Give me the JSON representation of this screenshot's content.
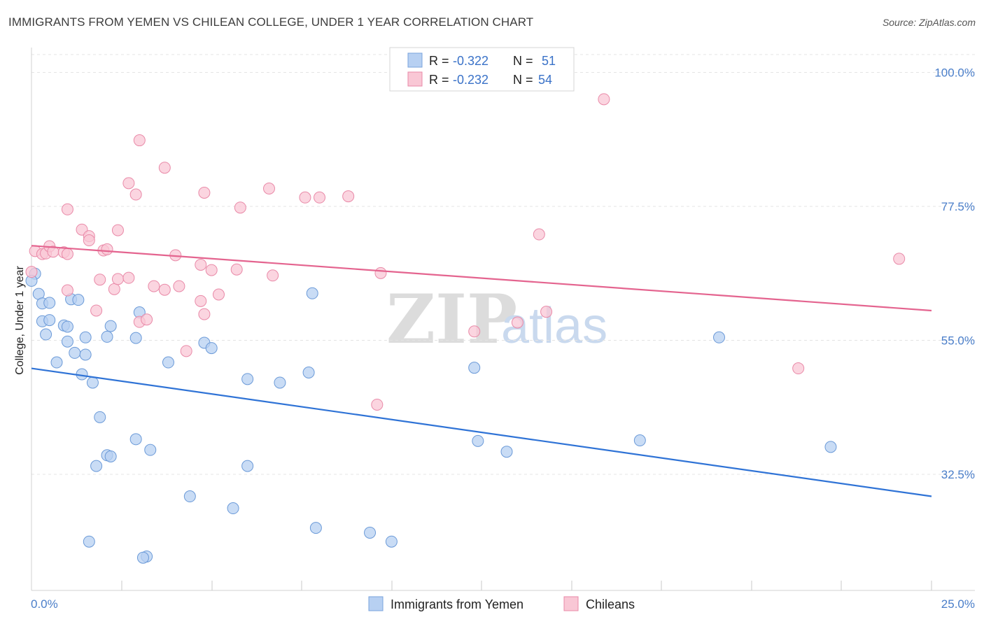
{
  "title": "IMMIGRANTS FROM YEMEN VS CHILEAN COLLEGE, UNDER 1 YEAR CORRELATION CHART",
  "source": "Source: ZipAtlas.com",
  "watermark": {
    "zip": "ZIP",
    "atlas": "atlas"
  },
  "legend": {
    "rows": [
      {
        "r_label": "R = ",
        "r_value": "-0.322",
        "n_label": "N = ",
        "n_value": "51",
        "color": "#a8c8f0"
      },
      {
        "r_label": "R = ",
        "r_value": "-0.232",
        "n_label": "N = ",
        "n_value": "54",
        "color": "#f7b8cb"
      }
    ]
  },
  "colors": {
    "blue_fill": "#b7d0f2",
    "blue_stroke": "#6b9ad8",
    "blue_line": "#2f73d6",
    "pink_fill": "#f9c7d5",
    "pink_stroke": "#e98aa8",
    "pink_line": "#e4648f",
    "axis_text": "#4a7ec9"
  },
  "chart_data": {
    "type": "scatter",
    "xlabel": "",
    "ylabel": "College, Under 1 year",
    "xlim": [
      0,
      25
    ],
    "ylim": [
      13,
      103
    ],
    "x_tick_labels": [
      "0.0%",
      "25.0%"
    ],
    "y_ticks": [
      {
        "value": 100,
        "label": "100.0%"
      },
      {
        "value": 77.5,
        "label": "77.5%"
      },
      {
        "value": 55,
        "label": "55.0%"
      },
      {
        "value": 32.5,
        "label": "32.5%"
      }
    ],
    "series": [
      {
        "name": "Immigrants from Yemen",
        "trend": {
          "x0": 0,
          "y0": 50.3,
          "x1": 25,
          "y1": 28.8
        },
        "points": [
          [
            0.1,
            66.2
          ],
          [
            0.2,
            62.8
          ],
          [
            0.3,
            61.2
          ],
          [
            0.3,
            58.2
          ],
          [
            0.4,
            56.0
          ],
          [
            0.5,
            61.3
          ],
          [
            0.5,
            58.4
          ],
          [
            0.7,
            51.3
          ],
          [
            0.9,
            57.5
          ],
          [
            1.0,
            57.3
          ],
          [
            1.0,
            54.8
          ],
          [
            1.1,
            61.9
          ],
          [
            1.2,
            52.9
          ],
          [
            1.3,
            61.8
          ],
          [
            1.4,
            49.3
          ],
          [
            1.5,
            55.5
          ],
          [
            1.5,
            52.6
          ],
          [
            1.7,
            47.9
          ],
          [
            1.9,
            42.1
          ],
          [
            2.1,
            35.7
          ],
          [
            2.2,
            35.5
          ],
          [
            1.8,
            33.9
          ],
          [
            2.1,
            55.6
          ],
          [
            2.2,
            57.4
          ],
          [
            2.9,
            55.4
          ],
          [
            2.9,
            38.4
          ],
          [
            3.0,
            59.7
          ],
          [
            3.3,
            36.6
          ],
          [
            3.8,
            51.3
          ],
          [
            4.4,
            28.8
          ],
          [
            4.8,
            54.6
          ],
          [
            5.0,
            53.7
          ],
          [
            5.6,
            26.8
          ],
          [
            6.0,
            48.5
          ],
          [
            6.0,
            33.9
          ],
          [
            6.9,
            47.9
          ],
          [
            7.7,
            49.6
          ],
          [
            7.8,
            62.9
          ],
          [
            7.9,
            23.5
          ],
          [
            9.4,
            22.7
          ],
          [
            10.0,
            21.2
          ],
          [
            12.3,
            50.4
          ],
          [
            12.4,
            38.1
          ],
          [
            13.2,
            36.3
          ],
          [
            16.9,
            38.2
          ],
          [
            19.1,
            55.5
          ],
          [
            22.2,
            37.1
          ],
          [
            1.6,
            21.2
          ],
          [
            3.2,
            18.7
          ],
          [
            3.1,
            18.5
          ],
          [
            0.0,
            65.0
          ]
        ]
      },
      {
        "name": "Chileans",
        "trend": {
          "x0": 0,
          "y0": 70.9,
          "x1": 25,
          "y1": 60.0
        },
        "points": [
          [
            0.1,
            70.0
          ],
          [
            0.3,
            69.5
          ],
          [
            0.4,
            69.6
          ],
          [
            0.5,
            70.8
          ],
          [
            0.6,
            69.9
          ],
          [
            0.9,
            69.8
          ],
          [
            1.0,
            69.5
          ],
          [
            1.0,
            63.4
          ],
          [
            1.0,
            77.0
          ],
          [
            1.4,
            73.6
          ],
          [
            1.6,
            72.5
          ],
          [
            1.6,
            71.8
          ],
          [
            1.8,
            60.0
          ],
          [
            1.9,
            65.2
          ],
          [
            2.0,
            70.1
          ],
          [
            2.1,
            70.3
          ],
          [
            2.3,
            63.6
          ],
          [
            2.4,
            65.3
          ],
          [
            2.4,
            73.5
          ],
          [
            2.7,
            65.5
          ],
          [
            2.7,
            81.4
          ],
          [
            2.9,
            79.5
          ],
          [
            3.0,
            88.6
          ],
          [
            3.0,
            58.1
          ],
          [
            3.2,
            58.5
          ],
          [
            3.4,
            64.1
          ],
          [
            3.7,
            63.5
          ],
          [
            3.7,
            84.0
          ],
          [
            4.0,
            69.3
          ],
          [
            4.1,
            64.1
          ],
          [
            4.3,
            53.2
          ],
          [
            4.7,
            67.7
          ],
          [
            4.7,
            61.6
          ],
          [
            4.8,
            79.8
          ],
          [
            4.8,
            59.4
          ],
          [
            5.0,
            66.8
          ],
          [
            5.8,
            77.3
          ],
          [
            5.7,
            66.9
          ],
          [
            6.7,
            65.9
          ],
          [
            6.6,
            80.5
          ],
          [
            7.6,
            79.0
          ],
          [
            8.0,
            79.0
          ],
          [
            8.8,
            79.2
          ],
          [
            9.6,
            44.2
          ],
          [
            9.7,
            66.3
          ],
          [
            12.3,
            56.5
          ],
          [
            13.5,
            58.0
          ],
          [
            14.1,
            72.8
          ],
          [
            14.3,
            59.8
          ],
          [
            15.9,
            95.5
          ],
          [
            21.3,
            50.3
          ],
          [
            24.1,
            68.7
          ],
          [
            0.0,
            66.5
          ],
          [
            5.2,
            62.7
          ]
        ]
      }
    ]
  },
  "bottom_legend": [
    {
      "label": "Immigrants from Yemen",
      "color": "#b7d0f2"
    },
    {
      "label": "Chileans",
      "color": "#f9c7d5"
    }
  ]
}
